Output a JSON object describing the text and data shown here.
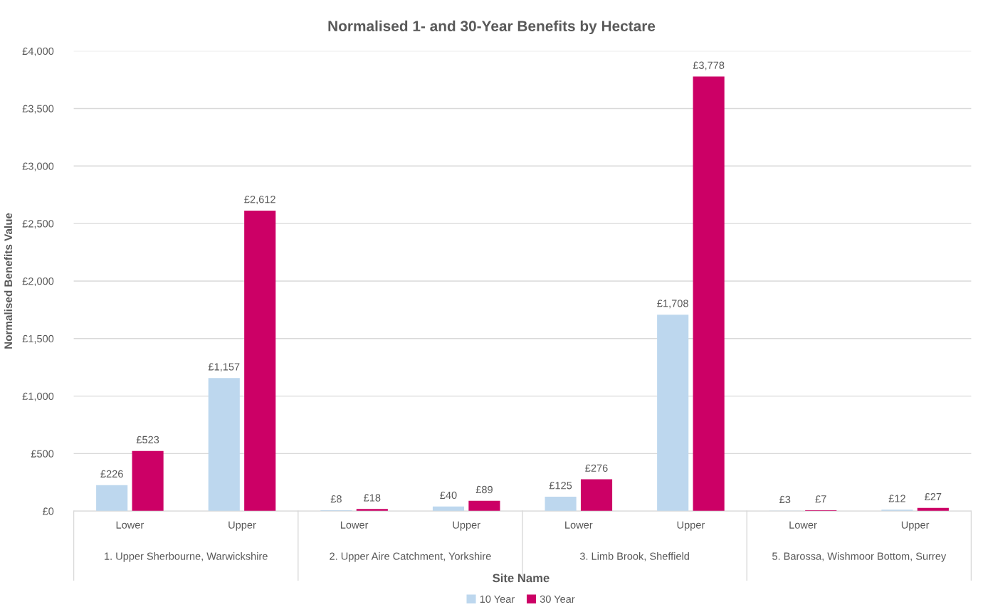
{
  "chart_data": {
    "type": "bar",
    "title": "Normalised 1- and 30-Year Benefits by Hectare",
    "xlabel": "Site Name",
    "ylabel": "Normalised Benefits Value",
    "categories": [
      "Lower",
      "Upper",
      "Lower",
      "Upper",
      "Lower",
      "Upper",
      "Lower",
      "Upper"
    ],
    "annotations": [
      "1. Upper Sherbourne, Warwickshire",
      "2. Upper Aire Catchment, Yorkshire",
      "3. Limb Brook, Sheffield",
      "5. Barossa, Wishmoor Bottom, Surrey"
    ],
    "series": [
      {
        "name": "10 Year",
        "color": "#bdd7ee",
        "values": [
          226,
          1157,
          8,
          40,
          125,
          1708,
          3,
          12
        ],
        "value_labels": [
          "£226",
          "£1,157",
          "£8",
          "£40",
          "£125",
          "£1,708",
          "£3",
          "£12"
        ]
      },
      {
        "name": "30 Year",
        "color": "#cc0066",
        "values": [
          523,
          2612,
          18,
          89,
          276,
          3778,
          7,
          27
        ],
        "value_labels": [
          "£523",
          "£2,612",
          "£18",
          "£89",
          "£276",
          "£3,778",
          "£7",
          "£27"
        ]
      }
    ],
    "ylim": [
      0,
      4000
    ],
    "yticks": [
      {
        "value": 0,
        "label": "£0"
      },
      {
        "value": 500,
        "label": "£500"
      },
      {
        "value": 1000,
        "label": "£1,000"
      },
      {
        "value": 1500,
        "label": "£1,500"
      },
      {
        "value": 2000,
        "label": "£2,000"
      },
      {
        "value": 2500,
        "label": "£2,500"
      },
      {
        "value": 3000,
        "label": "£3,000"
      },
      {
        "value": 3500,
        "label": "£3,500"
      },
      {
        "value": 4000,
        "label": "£4,000"
      }
    ],
    "grid": "y",
    "legend": "bottom"
  }
}
